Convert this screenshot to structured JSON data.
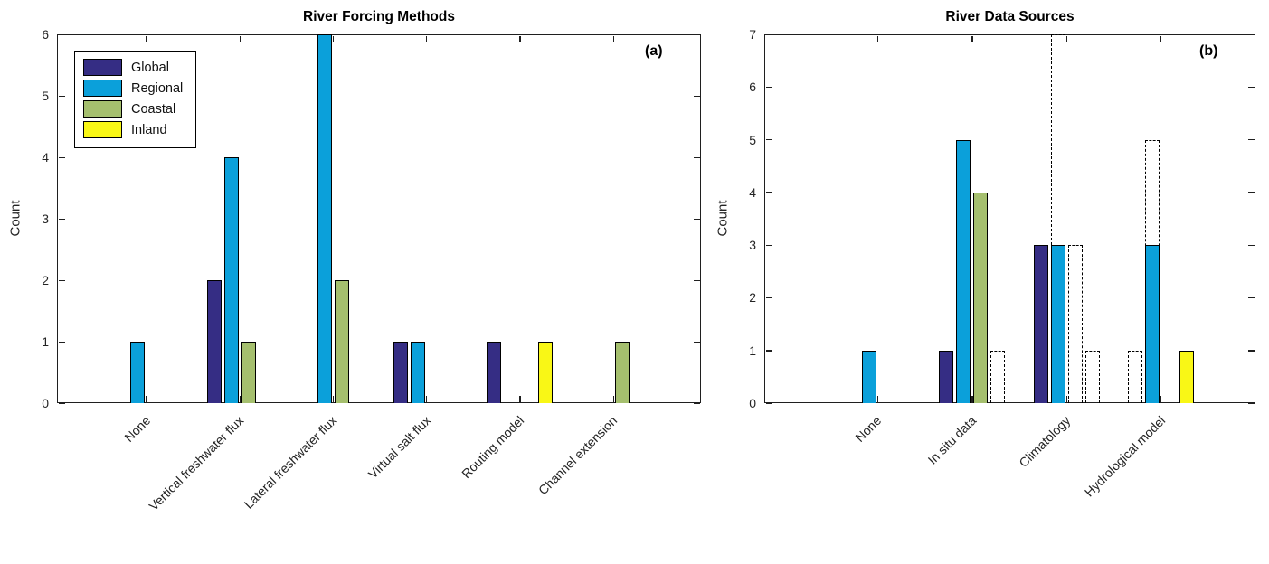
{
  "figure": {
    "background_color": "#ffffff",
    "axis_color": "#1f1f1f"
  },
  "legend": {
    "position": "top-left-of-panel-a",
    "entries": [
      {
        "label": "Global",
        "color": "#352D84"
      },
      {
        "label": "Regional",
        "color": "#0BA0DA"
      },
      {
        "label": "Coastal",
        "color": "#A5BF6E"
      },
      {
        "label": "Inland",
        "color": "#F9F716"
      }
    ]
  },
  "chart_data": [
    {
      "type": "bar",
      "title": "River Forcing Methods",
      "panel_label": "(a)",
      "xlabel": "",
      "ylabel": "Count",
      "ylim": [
        0,
        6
      ],
      "yticks": [
        0,
        1,
        2,
        3,
        4,
        5,
        6
      ],
      "grid": false,
      "legend_position": "top-left",
      "categories": [
        "None",
        "Vertical freshwater flux",
        "Lateral freshwater flux",
        "Virtual salt flux",
        "Routing model",
        "Channel extension"
      ],
      "series": [
        {
          "name": "Global",
          "color": "#352D84",
          "values": [
            0,
            2,
            0,
            1,
            1,
            0
          ]
        },
        {
          "name": "Regional",
          "color": "#0BA0DA",
          "values": [
            1,
            4,
            6,
            1,
            0,
            0
          ]
        },
        {
          "name": "Coastal",
          "color": "#A5BF6E",
          "values": [
            0,
            1,
            2,
            0,
            0,
            1
          ]
        },
        {
          "name": "Inland",
          "color": "#F9F716",
          "values": [
            0,
            0,
            0,
            0,
            1,
            0
          ]
        }
      ]
    },
    {
      "type": "bar",
      "title": "River Data Sources",
      "panel_label": "(b)",
      "xlabel": "",
      "ylabel": "Count",
      "ylim": [
        0,
        7
      ],
      "yticks": [
        0,
        1,
        2,
        3,
        4,
        5,
        6,
        7
      ],
      "grid": false,
      "categories": [
        "None",
        "In situ data",
        "Climatology",
        "Hydrological model"
      ],
      "series": [
        {
          "name": "Global",
          "color": "#352D84",
          "values": [
            0,
            1,
            3,
            0
          ]
        },
        {
          "name": "Regional",
          "color": "#0BA0DA",
          "values": [
            1,
            5,
            3,
            3
          ]
        },
        {
          "name": "Coastal",
          "color": "#A5BF6E",
          "values": [
            0,
            4,
            0,
            0
          ]
        },
        {
          "name": "Inland",
          "color": "#F9F716",
          "values": [
            0,
            0,
            0,
            1
          ]
        }
      ],
      "dashed_series": [
        {
          "name": "Global (dashed outline)",
          "values": [
            0,
            0,
            0,
            1
          ]
        },
        {
          "name": "Regional (dashed outline)",
          "values": [
            0,
            0,
            7,
            5
          ]
        },
        {
          "name": "Coastal (dashed outline)",
          "values": [
            0,
            0,
            3,
            0
          ]
        },
        {
          "name": "Inland (dashed outline)",
          "values": [
            0,
            1,
            1,
            0
          ]
        }
      ]
    }
  ]
}
